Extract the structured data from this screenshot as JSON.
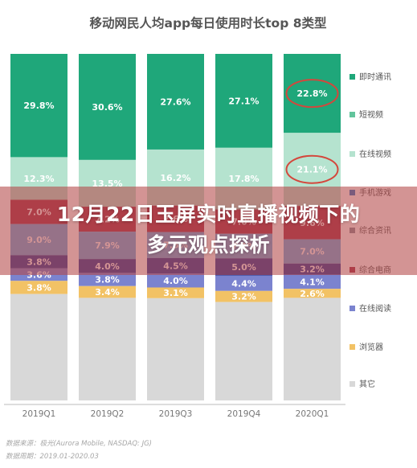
{
  "banner": {
    "line1": "12月22日玉屏实时直播视频下的",
    "line2": "多元观点探析"
  },
  "source": {
    "line1": "数据来源：极光(Aurora Mobile, NASDAQ: JG)",
    "line2": "数据周期：2019.01-2020.03"
  },
  "chart_data": {
    "type": "bar",
    "stacked": true,
    "percent": true,
    "title": "移动网民人均app每日使用时长top 8类型",
    "categories": [
      "2019Q1",
      "2019Q2",
      "2019Q3",
      "2019Q4",
      "2020Q1"
    ],
    "series": [
      {
        "name": "即时通讯",
        "color": "#1fa77a",
        "values": [
          29.8,
          30.6,
          27.6,
          27.1,
          22.8
        ]
      },
      {
        "name": "短视频",
        "color": "#62c49c",
        "values": [
          null,
          null,
          null,
          null,
          null
        ]
      },
      {
        "name": "在线视频",
        "color": "#b5e3cf",
        "values": [
          12.3,
          13.5,
          16.2,
          17.8,
          21.1
        ]
      },
      {
        "name": "手机游戏",
        "color": "#2b77c7",
        "values": [
          null,
          null,
          null,
          null,
          null
        ]
      },
      {
        "name": "综合资讯",
        "color": "#8a8f9c",
        "values": [
          null,
          null,
          null,
          null,
          null
        ]
      },
      {
        "name": "综合电商",
        "color": "#a6334a",
        "values": [
          7.0,
          7.2,
          7.6,
          7.0,
          9.6
        ]
      },
      {
        "name": "",
        "color": "#6eaee3",
        "values": [
          9.0,
          7.9,
          7.5,
          7.1,
          7.0
        ]
      },
      {
        "name": "",
        "color": "#2e3d9a",
        "values": [
          3.8,
          4.0,
          4.5,
          5.0,
          3.2
        ]
      },
      {
        "name": "在线阅读",
        "color": "#7b83cf",
        "values": [
          3.6,
          3.8,
          4.0,
          4.4,
          4.1
        ]
      },
      {
        "name": "浏览器",
        "color": "#f2c265",
        "values": [
          3.8,
          3.4,
          3.1,
          3.2,
          2.6
        ]
      },
      {
        "name": "其它",
        "color": "#d8d8d8",
        "values": [
          null,
          null,
          null,
          null,
          null
        ]
      }
    ],
    "highlight_circles": [
      {
        "category": "2020Q1",
        "series": "即时通讯"
      },
      {
        "category": "2020Q1",
        "series": "在线视频"
      }
    ],
    "grid": false,
    "legend_position": "right"
  }
}
